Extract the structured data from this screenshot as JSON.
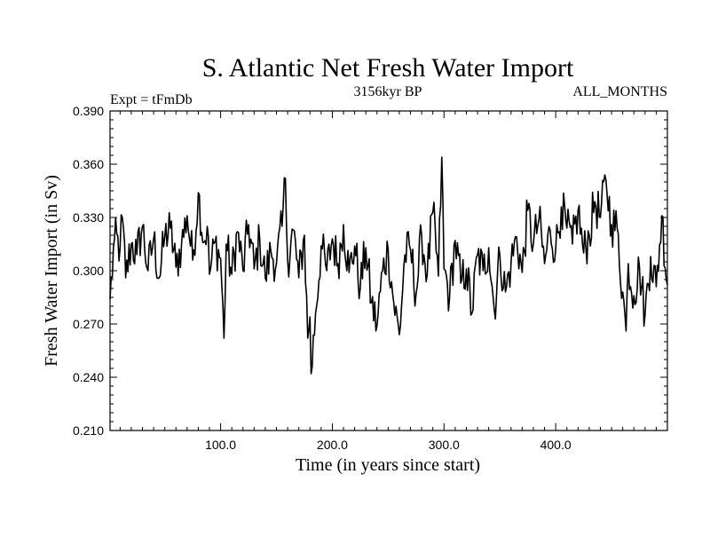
{
  "chart_data": {
    "type": "line",
    "title": "S. Atlantic Net Fresh Water Import",
    "subtitle_left": "Expt = tFmDb",
    "subtitle_center": "3156kyr BP",
    "subtitle_right": "ALL_MONTHS",
    "xlabel": "Time (in years since start)",
    "ylabel": "Fresh Water Import (in Sv)",
    "xlim": [
      1,
      500
    ],
    "ylim": [
      0.21,
      0.39
    ],
    "xticks": [
      100,
      200,
      300,
      400
    ],
    "xtick_labels": [
      "100.0",
      "200.0",
      "300.0",
      "400.0"
    ],
    "yticks": [
      0.21,
      0.24,
      0.27,
      0.3,
      0.33,
      0.36,
      0.39
    ],
    "ytick_labels": [
      "0.210",
      "0.240",
      "0.270",
      "0.300",
      "0.330",
      "0.360",
      "0.390"
    ],
    "grid": false,
    "series": [
      {
        "name": "Fresh Water Import",
        "color": "#000000",
        "anchors_x": [
          1,
          5,
          10,
          12,
          15,
          20,
          25,
          30,
          35,
          40,
          45,
          50,
          55,
          60,
          65,
          70,
          75,
          80,
          85,
          88,
          90,
          95,
          100,
          103,
          105,
          110,
          115,
          120,
          125,
          130,
          135,
          140,
          145,
          150,
          155,
          158,
          160,
          165,
          170,
          175,
          178,
          180,
          181,
          185,
          190,
          195,
          200,
          205,
          210,
          215,
          220,
          225,
          230,
          235,
          240,
          245,
          250,
          255,
          260,
          265,
          270,
          275,
          280,
          285,
          290,
          295,
          298,
          300,
          305,
          310,
          315,
          320,
          325,
          330,
          335,
          340,
          345,
          350,
          355,
          360,
          365,
          370,
          375,
          380,
          385,
          390,
          395,
          400,
          405,
          410,
          415,
          420,
          425,
          430,
          435,
          440,
          445,
          450,
          455,
          460,
          463,
          465,
          470,
          475,
          480,
          485,
          490,
          495,
          500
        ],
        "anchors_y": [
          0.284,
          0.318,
          0.313,
          0.33,
          0.296,
          0.315,
          0.309,
          0.325,
          0.3,
          0.318,
          0.296,
          0.319,
          0.324,
          0.302,
          0.315,
          0.331,
          0.306,
          0.344,
          0.316,
          0.325,
          0.298,
          0.316,
          0.307,
          0.262,
          0.315,
          0.298,
          0.322,
          0.3,
          0.326,
          0.301,
          0.318,
          0.296,
          0.311,
          0.304,
          0.325,
          0.352,
          0.306,
          0.323,
          0.296,
          0.32,
          0.262,
          0.274,
          0.242,
          0.276,
          0.314,
          0.3,
          0.318,
          0.304,
          0.326,
          0.299,
          0.314,
          0.29,
          0.313,
          0.282,
          0.269,
          0.3,
          0.312,
          0.282,
          0.264,
          0.309,
          0.312,
          0.287,
          0.32,
          0.298,
          0.333,
          0.297,
          0.364,
          0.301,
          0.285,
          0.317,
          0.293,
          0.301,
          0.276,
          0.309,
          0.3,
          0.313,
          0.278,
          0.309,
          0.288,
          0.304,
          0.319,
          0.299,
          0.334,
          0.315,
          0.329,
          0.304,
          0.323,
          0.312,
          0.336,
          0.324,
          0.315,
          0.334,
          0.31,
          0.32,
          0.339,
          0.33,
          0.351,
          0.326,
          0.324,
          0.288,
          0.266,
          0.304,
          0.286,
          0.302,
          0.275,
          0.308,
          0.291,
          0.331,
          0.292
        ],
        "noise_amplitude": 0.013
      }
    ]
  }
}
